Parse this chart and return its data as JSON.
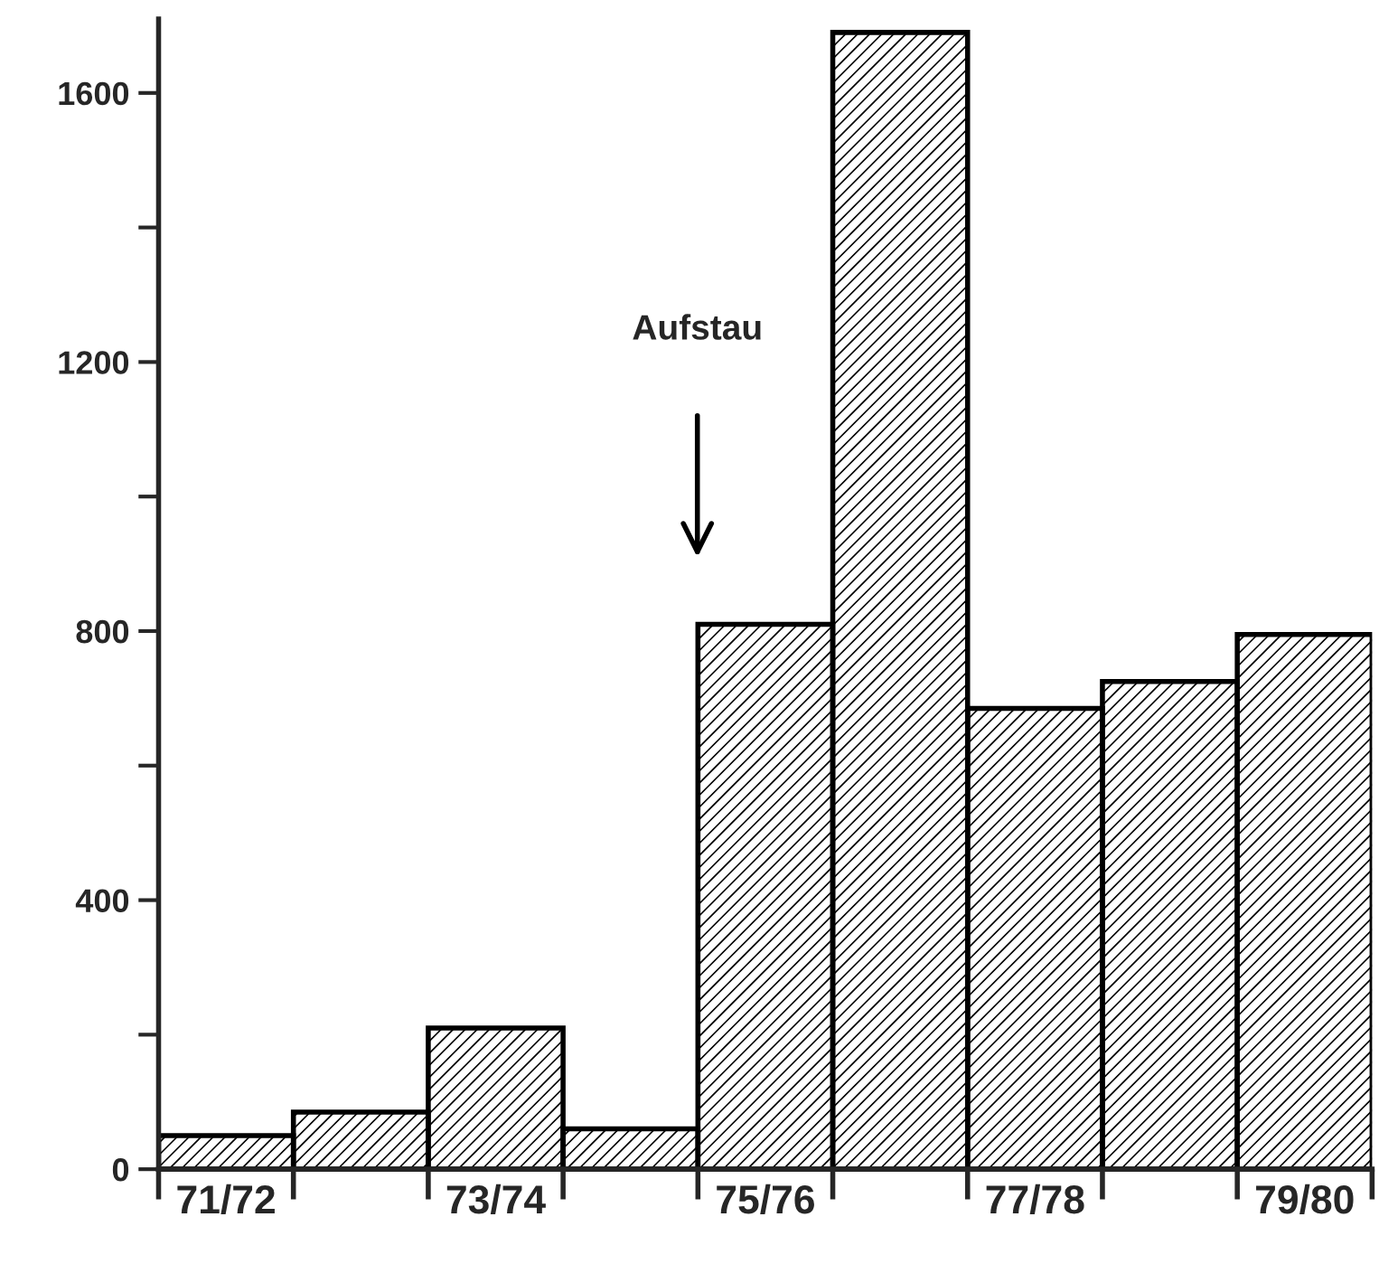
{
  "chart_data": {
    "type": "bar",
    "categories": [
      "71/72",
      null,
      "73/74",
      null,
      "75/76",
      null,
      "77/78",
      null,
      "79/80"
    ],
    "values": [
      50,
      85,
      210,
      60,
      810,
      1690,
      685,
      725,
      795
    ],
    "color": "#000000",
    "ylim": [
      0,
      1710
    ],
    "yticks": [
      0,
      {
        "value": 200,
        "label": null
      },
      400,
      {
        "value": 600,
        "label": null
      },
      800,
      {
        "value": 1000,
        "label": null
      },
      1200,
      {
        "value": 1400,
        "label": null
      },
      1600
    ],
    "annotations": [
      "Aufstau"
    ],
    "grid": false,
    "legend": false
  }
}
